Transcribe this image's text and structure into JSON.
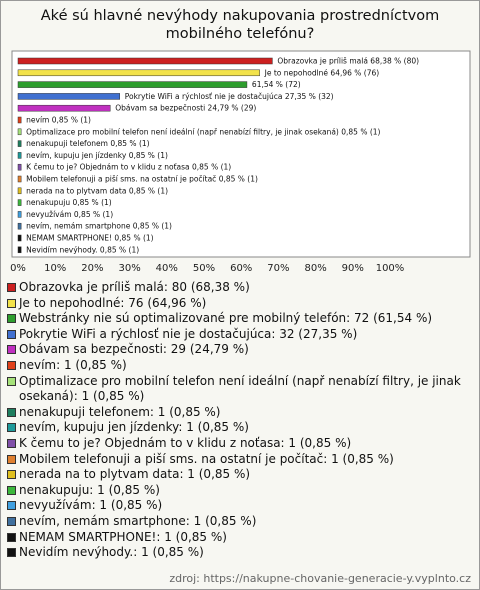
{
  "chart_data": {
    "type": "barh",
    "title": "Aké sú hlavné nevýhody nakupovania prostredníctvom mobilného telefónu?",
    "categories": [
      "Obrazovka je príliš malá: 80 (68,38 %)",
      "Je to nepohodlné: 76 (64,96 %)",
      "Webstránky nie sú optimalizované pre mobilný telefón: 72 (61,54 %)",
      "Pokrytie WiFi a rýchlosť nie je dostačujúca: 32 (27,35 %)",
      "Obávam sa bezpečnosti: 29 (24,79 %)",
      "nevím: 1 (0,85 %)",
      "Optimalizace pro mobilní telefon není ideální (např nenabízí filtry, je jinak osekaná): 1 (0,85 %)",
      "nenakupuji telefonem: 1 (0,85 %)",
      "nevím, kupuju jen jízdenky: 1 (0,85 %)",
      "K čemu to je? Objednám to v klidu z noťasa: 1 (0,85 %)",
      "Mobilem telefonuji a piší sms. na ostatní je počítač: 1 (0,85 %)",
      "nerada na to plytvam data: 1 (0,85 %)",
      "nenakupuju: 1 (0,85 %)",
      "nevyužívám: 1 (0,85 %)",
      "nevím, nemám smartphone: 1 (0,85 %)",
      "NEMAM SMARTPHONE!: 1 (0,85 %)",
      "Nevidím nevýhody.: 1 (0,85 %)"
    ],
    "values": [
      68.38,
      64.96,
      61.54,
      27.35,
      24.79,
      0.85,
      0.85,
      0.85,
      0.85,
      0.85,
      0.85,
      0.85,
      0.85,
      0.85,
      0.85,
      0.85,
      0.85
    ],
    "value_labels": [
      "Obrazovka je príliš malá 68,38 % (80)",
      "Je to nepohodlné 64,96 % (76)",
      "61,54 % (72)",
      "Pokrytie WiFi a rýchlosť nie je dostačujúca 27,35 % (32)",
      "Obávam sa bezpečnosti 24,79 % (29)",
      "nevím 0,85 % (1)",
      "Optimalizace pro mobilní telefon není ideální (např nenabízí filtry, je jinak osekaná) 0,85 % (1)",
      "nenakupuji telefonem 0,85 % (1)",
      "nevím, kupuju jen jízdenky 0,85 % (1)",
      "K čemu to je? Objednám to v klidu z noťasa 0,85 % (1)",
      "Mobilem telefonuji a piší sms. na ostatní je počítač 0,85 % (1)",
      "nerada na to plytvam data 0,85 % (1)",
      "nenakupuju 0,85 % (1)",
      "nevyužívám 0,85 % (1)",
      "nevím, nemám smartphone 0,85 % (1)",
      "NEMAM SMARTPHONE! 0,85 % (1)",
      "Nevidím nevýhody. 0,85 % (1)"
    ],
    "colors": [
      "#cc2020",
      "#f2e24a",
      "#2e9e2e",
      "#4070d0",
      "#c030c0",
      "#e0401a",
      "#a6e27a",
      "#1f7f5f",
      "#1e9a9a",
      "#8050a8",
      "#e08030",
      "#e0c020",
      "#3cb83c",
      "#40a0e0",
      "#40709e",
      "#111111",
      "#111111"
    ],
    "xlim": [
      0,
      100
    ],
    "xticks": [
      {
        "value": 0,
        "label": "0%"
      },
      {
        "value": 10,
        "label": "10%"
      },
      {
        "value": 20,
        "label": "20%"
      },
      {
        "value": 30,
        "label": "30%"
      },
      {
        "value": 40,
        "label": "40%"
      },
      {
        "value": 50,
        "label": "50%"
      },
      {
        "value": 60,
        "label": "60%"
      },
      {
        "value": 70,
        "label": "70%"
      },
      {
        "value": 80,
        "label": "80%"
      },
      {
        "value": 90,
        "label": "90%"
      },
      {
        "value": 100,
        "label": "100%"
      }
    ],
    "grid": false,
    "source": "zdroj: https://nakupne-chovanie-generacie-y.vyplnto.cz"
  }
}
